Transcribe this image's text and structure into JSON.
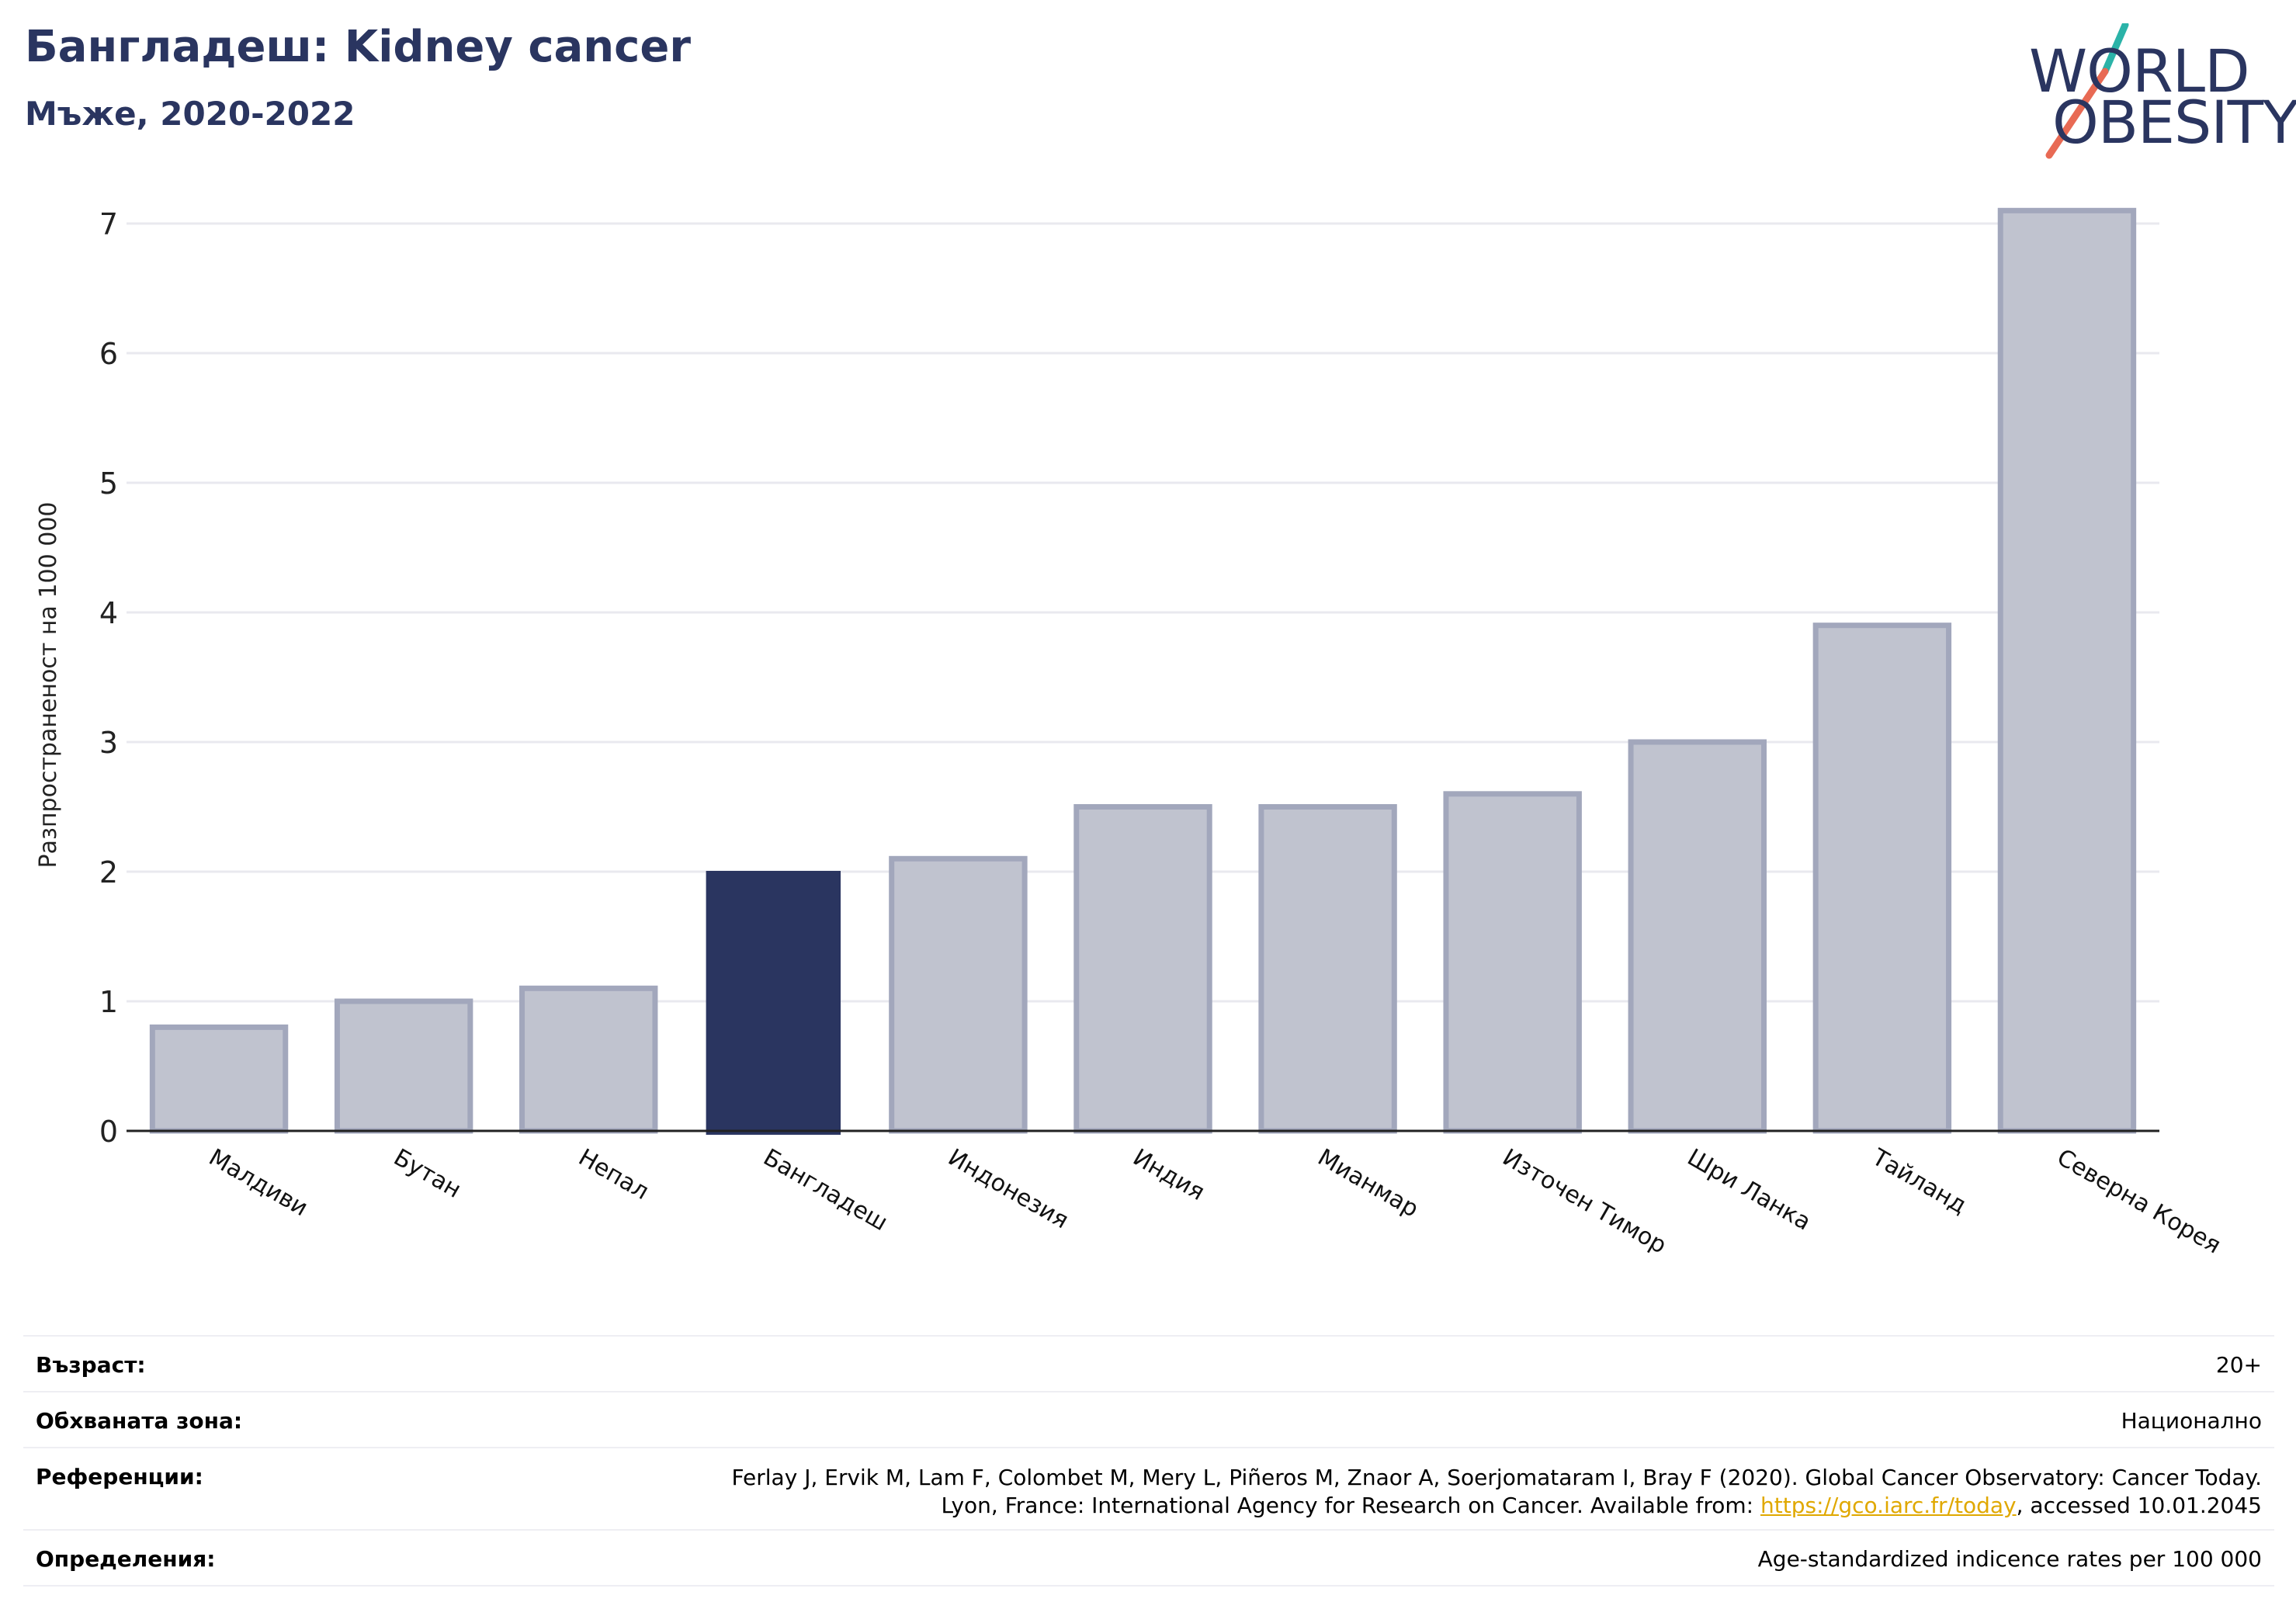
{
  "header": {
    "title": "Бангладеш: Kidney cancer",
    "subtitle": "Мъже, 2020-2022"
  },
  "logo": {
    "line1": "WORLD",
    "line2": "OBESITY",
    "colors": {
      "text": "#2a3560",
      "slash_top": "#2bb3a8",
      "slash_bottom": "#e86a54"
    }
  },
  "chart_data": {
    "type": "bar",
    "title": "Бангладеш: Kidney cancer",
    "subtitle": "Мъже, 2020-2022",
    "ylabel": "Разпространеност  на 100 000",
    "xlabel": "",
    "ylim": [
      0,
      7.3
    ],
    "yticks": [
      0,
      1,
      2,
      3,
      4,
      5,
      6,
      7
    ],
    "grid": true,
    "categories": [
      "Малдиви",
      "Бутан",
      "Непал",
      "Бангладеш",
      "Индонезия",
      "Индия",
      "Мианмар",
      "Източен Тимор",
      "Шри Ланка",
      "Тайланд",
      "Северна Корея"
    ],
    "values": [
      0.8,
      1.0,
      1.1,
      2.0,
      2.1,
      2.5,
      2.5,
      2.6,
      3.0,
      3.9,
      7.1
    ],
    "highlight": "Бангладеш",
    "colors": {
      "bar": "#c0c3cf",
      "bar_edge": "#a2a7bc",
      "highlight": "#2a3560",
      "grid": "#e9e9ef",
      "axis": "#222222"
    }
  },
  "info": {
    "age_label": "Възраст:",
    "age_value": "20+",
    "coverage_label": "Обхваната зона:",
    "coverage_value": "Национално",
    "references_label": "Референции:",
    "references_line1": "Ferlay J, Ervik M, Lam F, Colombet M, Mery L, Piñeros M, Znaor A, Soerjomataram I, Bray F (2020). Global Cancer Observatory: Cancer Today.",
    "references_line2_pre": "Lyon, France: International Agency for Research on Cancer. Available from: ",
    "references_link": "https://gco.iarc.fr/today",
    "references_line2_post": ", accessed 10.01.2045",
    "definitions_label": "Определения:",
    "definitions_value": "Age-standardized indicence rates per 100 000"
  }
}
